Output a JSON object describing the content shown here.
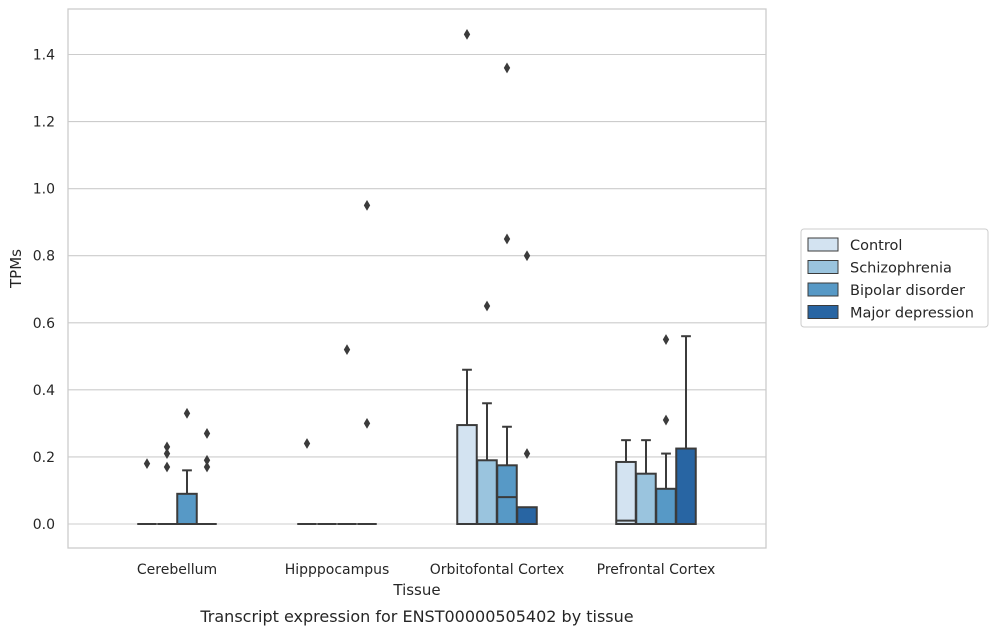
{
  "chart_data": {
    "type": "box",
    "title": "",
    "caption": "Transcript expression for ENST00000505402 by tissue",
    "xlabel": "Tissue",
    "ylabel": "TPMs",
    "ylim": [
      -0.07,
      1.54
    ],
    "yticks": [
      0.0,
      0.2,
      0.4,
      0.6,
      0.8,
      1.0,
      1.2,
      1.4
    ],
    "ytick_labels": [
      "0.0",
      "0.2",
      "0.4",
      "0.6",
      "0.8",
      "1.0",
      "1.2",
      "1.4"
    ],
    "grid": "horizontal",
    "legend_position": "right",
    "categories": [
      "Cerebellum",
      "Hipppocampus",
      "Orbitofontal Cortex",
      "Prefrontal Cortex"
    ],
    "series": [
      {
        "name": "Control",
        "color": "#d3e3f1",
        "boxes": [
          {
            "q1": 0.0,
            "median": 0.0,
            "q3": 0.0,
            "whisker_low": 0.0,
            "whisker_high": 0.0,
            "outliers": [
              0.18
            ]
          },
          {
            "q1": 0.0,
            "median": 0.0,
            "q3": 0.0,
            "whisker_low": 0.0,
            "whisker_high": 0.0,
            "outliers": [
              0.24
            ]
          },
          {
            "q1": 0.0,
            "median": 0.0,
            "q3": 0.295,
            "whisker_low": 0.0,
            "whisker_high": 0.46,
            "outliers": [
              1.46
            ]
          },
          {
            "q1": 0.0,
            "median": 0.01,
            "q3": 0.185,
            "whisker_low": 0.0,
            "whisker_high": 0.25,
            "outliers": []
          }
        ]
      },
      {
        "name": "Schizophrenia",
        "color": "#9ac4de",
        "boxes": [
          {
            "q1": 0.0,
            "median": 0.0,
            "q3": 0.0,
            "whisker_low": 0.0,
            "whisker_high": 0.0,
            "outliers": [
              0.17,
              0.21,
              0.23
            ]
          },
          {
            "q1": 0.0,
            "median": 0.0,
            "q3": 0.0,
            "whisker_low": 0.0,
            "whisker_high": 0.0,
            "outliers": []
          },
          {
            "q1": 0.0,
            "median": 0.0,
            "q3": 0.19,
            "whisker_low": 0.0,
            "whisker_high": 0.36,
            "outliers": [
              0.65
            ]
          },
          {
            "q1": 0.0,
            "median": 0.0,
            "q3": 0.15,
            "whisker_low": 0.0,
            "whisker_high": 0.25,
            "outliers": []
          }
        ]
      },
      {
        "name": "Bipolar disorder",
        "color": "#5799c6",
        "boxes": [
          {
            "q1": 0.0,
            "median": 0.0,
            "q3": 0.09,
            "whisker_low": 0.0,
            "whisker_high": 0.16,
            "outliers": [
              0.33
            ]
          },
          {
            "q1": 0.0,
            "median": 0.0,
            "q3": 0.0,
            "whisker_low": 0.0,
            "whisker_high": 0.0,
            "outliers": [
              0.52
            ]
          },
          {
            "q1": 0.0,
            "median": 0.08,
            "q3": 0.175,
            "whisker_low": 0.0,
            "whisker_high": 0.29,
            "outliers": [
              1.36,
              0.85
            ]
          },
          {
            "q1": 0.0,
            "median": 0.0,
            "q3": 0.105,
            "whisker_low": 0.0,
            "whisker_high": 0.21,
            "outliers": [
              0.55,
              0.31
            ]
          }
        ]
      },
      {
        "name": "Major depression",
        "color": "#2865a3",
        "boxes": [
          {
            "q1": 0.0,
            "median": 0.0,
            "q3": 0.0,
            "whisker_low": 0.0,
            "whisker_high": 0.0,
            "outliers": [
              0.17,
              0.19,
              0.27
            ]
          },
          {
            "q1": 0.0,
            "median": 0.0,
            "q3": 0.0,
            "whisker_low": 0.0,
            "whisker_high": 0.0,
            "outliers": [
              0.3,
              0.95
            ]
          },
          {
            "q1": 0.0,
            "median": 0.0,
            "q3": 0.05,
            "whisker_low": 0.0,
            "whisker_high": 0.05,
            "outliers": [
              0.8,
              0.21
            ]
          },
          {
            "q1": 0.0,
            "median": 0.0,
            "q3": 0.225,
            "whisker_low": 0.0,
            "whisker_high": 0.56,
            "outliers": []
          }
        ]
      }
    ]
  }
}
